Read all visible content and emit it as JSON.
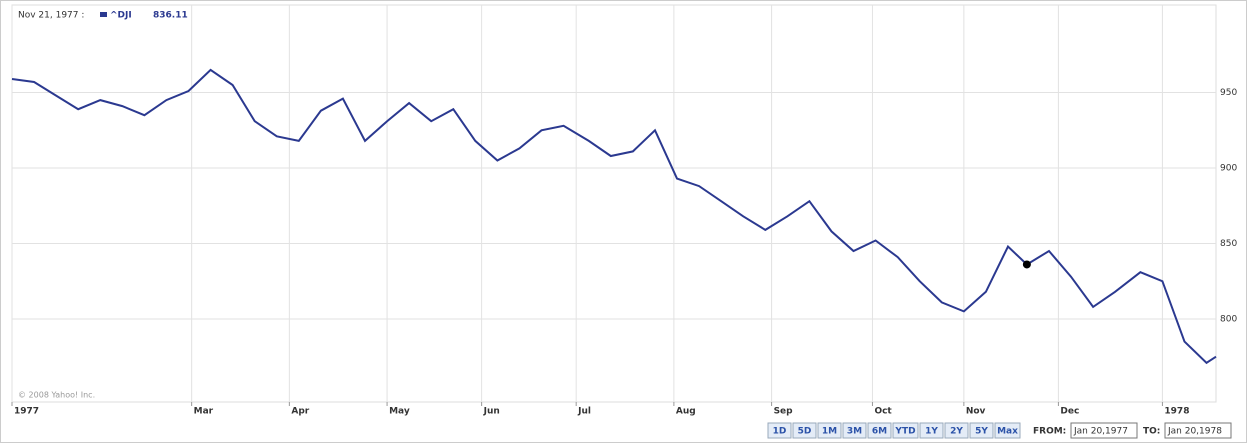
{
  "chart_data": {
    "type": "line",
    "hover": {
      "date_label": "Nov 21, 1977 :",
      "series_label": "^DJI",
      "value": 836.11,
      "index": 46
    },
    "copyright": "© 2008 Yahoo! Inc.",
    "x": [
      "1977-01-03",
      "1977-01-10",
      "1977-01-17",
      "1977-01-24",
      "1977-01-31",
      "1977-02-07",
      "1977-02-14",
      "1977-02-21",
      "1977-02-28",
      "1977-03-07",
      "1977-03-14",
      "1977-03-21",
      "1977-03-28",
      "1977-04-04",
      "1977-04-11",
      "1977-04-18",
      "1977-04-25",
      "1977-05-02",
      "1977-05-09",
      "1977-05-16",
      "1977-05-23",
      "1977-05-30",
      "1977-06-06",
      "1977-06-13",
      "1977-06-20",
      "1977-06-27",
      "1977-07-05",
      "1977-07-12",
      "1977-07-19",
      "1977-07-26",
      "1977-08-02",
      "1977-08-09",
      "1977-08-16",
      "1977-08-23",
      "1977-08-30",
      "1977-09-06",
      "1977-09-13",
      "1977-09-20",
      "1977-09-27",
      "1977-10-04",
      "1977-10-11",
      "1977-10-18",
      "1977-10-25",
      "1977-11-01",
      "1977-11-08",
      "1977-11-15",
      "1977-11-21",
      "1977-11-28",
      "1977-12-05",
      "1977-12-12",
      "1977-12-19",
      "1977-12-27",
      "1978-01-03",
      "1978-01-10",
      "1978-01-17",
      "1978-01-20"
    ],
    "series": [
      {
        "name": "^DJI",
        "color": "#2b3990",
        "values": [
          959,
          957,
          948,
          939,
          945,
          941,
          935,
          945,
          951,
          965,
          955,
          931,
          921,
          918,
          938,
          946,
          918,
          931,
          943,
          931,
          939,
          918,
          905,
          913,
          925,
          928,
          918,
          908,
          911,
          925,
          893,
          888,
          878,
          868,
          859,
          868,
          878,
          858,
          845,
          852,
          841,
          825,
          811,
          805,
          818,
          848,
          836.11,
          845,
          828,
          808,
          818,
          831,
          825,
          785,
          771,
          775
        ]
      }
    ],
    "xlim": [
      "1977-01-03",
      "1978-01-20"
    ],
    "xticks": [
      {
        "value": "1977-01-03",
        "label": "1977"
      },
      {
        "value": "1977-03-01",
        "label": "Mar"
      },
      {
        "value": "1977-04-01",
        "label": "Apr"
      },
      {
        "value": "1977-05-02",
        "label": "May"
      },
      {
        "value": "1977-06-01",
        "label": "Jun"
      },
      {
        "value": "1977-07-01",
        "label": "Jul"
      },
      {
        "value": "1977-08-01",
        "label": "Aug"
      },
      {
        "value": "1977-09-01",
        "label": "Sep"
      },
      {
        "value": "1977-10-03",
        "label": "Oct"
      },
      {
        "value": "1977-11-01",
        "label": "Nov"
      },
      {
        "value": "1977-12-01",
        "label": "Dec"
      },
      {
        "value": "1978-01-03",
        "label": "1978"
      }
    ],
    "ylim": [
      745,
      1008
    ],
    "yticks": [
      800,
      850,
      900,
      950
    ],
    "grid": true,
    "ranges": [
      "1D",
      "5D",
      "1M",
      "3M",
      "6M",
      "YTD",
      "1Y",
      "2Y",
      "5Y",
      "Max"
    ],
    "from_label": "FROM:",
    "from_value": "Jan 20,1977",
    "to_label": "TO:",
    "to_value": "Jan 20,1978"
  }
}
